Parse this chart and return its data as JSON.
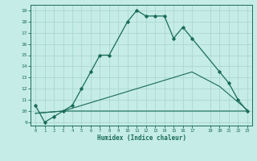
{
  "xlabel": "Humidex (Indice chaleur)",
  "xlim": [
    -0.5,
    23.5
  ],
  "ylim": [
    8.7,
    19.5
  ],
  "yticks": [
    9,
    10,
    11,
    12,
    13,
    14,
    15,
    16,
    17,
    18,
    19
  ],
  "xtick_vals": [
    0,
    1,
    2,
    3,
    4,
    5,
    6,
    7,
    8,
    9,
    10,
    11,
    12,
    13,
    14,
    15,
    16,
    17,
    19,
    20,
    21,
    22,
    23
  ],
  "bg_color": "#c5ece6",
  "grid_color": "#aad8d0",
  "line_color": "#1a6b5a",
  "line1_x": [
    0,
    1,
    2,
    3,
    4,
    5,
    6,
    7,
    8,
    10,
    11,
    12,
    13,
    14,
    15,
    16,
    17,
    20,
    21,
    22,
    23
  ],
  "line1_y": [
    10.5,
    9.0,
    9.5,
    10.0,
    10.5,
    12.0,
    13.5,
    15.0,
    15.0,
    18.0,
    19.0,
    18.5,
    18.5,
    18.5,
    16.5,
    17.5,
    16.5,
    13.5,
    12.5,
    11.0,
    10.0
  ],
  "line2_x": [
    0,
    3,
    23
  ],
  "line2_y": [
    9.8,
    10.0,
    10.0
  ],
  "line3_x": [
    0,
    3,
    9,
    17,
    20,
    23
  ],
  "line3_y": [
    9.8,
    10.0,
    11.5,
    13.5,
    12.2,
    10.1
  ]
}
